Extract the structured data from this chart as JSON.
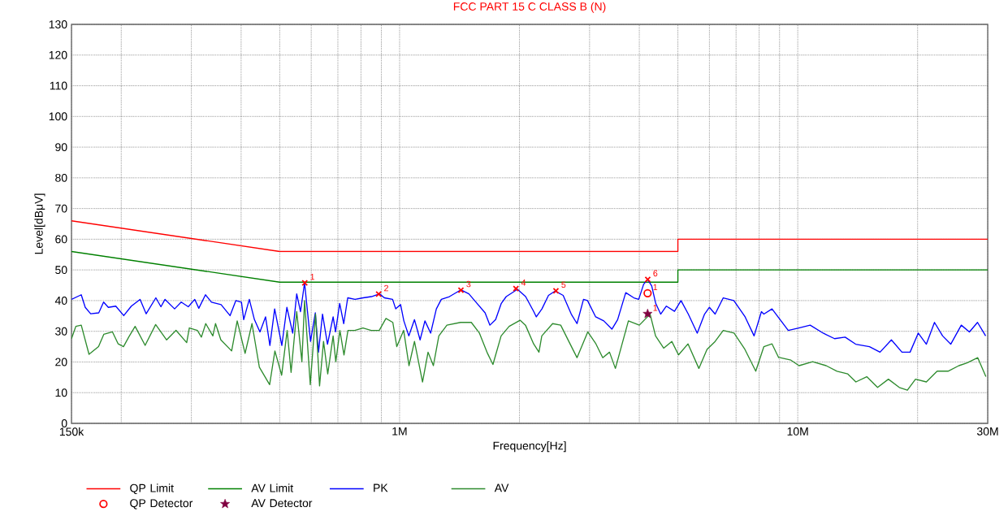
{
  "chart_data": {
    "type": "line",
    "title": "FCC PART 15 C CLASS B (N)",
    "xlabel": "Frequency[Hz]",
    "ylabel": "Level[dBμV]",
    "log": "x",
    "grid": true,
    "legend": "bottom",
    "xlim": [
      150000,
      30000000
    ],
    "ylim": [
      0,
      130
    ],
    "xticks": [
      {
        "value": 150000,
        "label": "150k"
      },
      {
        "value": 200000,
        "label": null
      },
      {
        "value": 300000,
        "label": null
      },
      {
        "value": 400000,
        "label": null
      },
      {
        "value": 500000,
        "label": null
      },
      {
        "value": 600000,
        "label": null
      },
      {
        "value": 700000,
        "label": null
      },
      {
        "value": 800000,
        "label": null
      },
      {
        "value": 900000,
        "label": null
      },
      {
        "value": 1000000,
        "label": "1M"
      },
      {
        "value": 2000000,
        "label": null
      },
      {
        "value": 3000000,
        "label": null
      },
      {
        "value": 4000000,
        "label": null
      },
      {
        "value": 5000000,
        "label": null
      },
      {
        "value": 6000000,
        "label": null
      },
      {
        "value": 7000000,
        "label": null
      },
      {
        "value": 8000000,
        "label": null
      },
      {
        "value": 9000000,
        "label": null
      },
      {
        "value": 10000000,
        "label": "10M"
      },
      {
        "value": 20000000,
        "label": null
      },
      {
        "value": 30000000,
        "label": "30M"
      }
    ],
    "yticks": [
      0,
      10,
      20,
      30,
      40,
      50,
      60,
      70,
      80,
      90,
      100,
      110,
      120,
      130
    ],
    "series": [
      {
        "name": "QP Limit",
        "color": "#ff0000",
        "x": [
          150000,
          500000,
          5000000,
          5000000,
          30000000
        ],
        "values": [
          66,
          56,
          56,
          60,
          60
        ]
      },
      {
        "name": "AV Limit",
        "color": "#008000",
        "x": [
          150000,
          500000,
          5000000,
          5000000,
          30000000
        ],
        "values": [
          56,
          46,
          46,
          50,
          50
        ]
      },
      {
        "name": "PK",
        "color": "#0000ff",
        "x": [
          150000,
          158700,
          162400,
          167600,
          175600,
          180600,
          185600,
          193800,
          202900,
          212000,
          223000,
          231000,
          244300,
          251600,
          257600,
          272300,
          282900,
          294700,
          306000,
          313200,
          325500,
          337000,
          356300,
          375200,
          388000,
          400800,
          406000,
          419400,
          432000,
          446000,
          460700,
          472400,
          485600,
          506200,
          521200,
          539000,
          551700,
          564000,
          577300,
          597600,
          614300,
          625800,
          640500,
          659200,
          681000,
          690600,
          707300,
          724100,
          741000,
          773000,
          810400,
          849800,
          890300,
          915700,
          960400,
          978000,
          1006000,
          1025000,
          1055000,
          1090000,
          1126000,
          1158000,
          1197000,
          1237000,
          1273000,
          1334000,
          1425000,
          1493000,
          1565000,
          1640000,
          1686000,
          1743000,
          1801000,
          1853000,
          1978000,
          2073000,
          2173000,
          2205000,
          2278000,
          2366000,
          2457000,
          2575000,
          2699000,
          2790000,
          2897000,
          2965000,
          3108000,
          3257000,
          3414000,
          3529000,
          3699000,
          3877000,
          3987000,
          4101000,
          4197000,
          4298000,
          4398000,
          4526000,
          4678000,
          4903000,
          5091000,
          5310000,
          5592000,
          5834000,
          6000000,
          6202000,
          6500000,
          6909000,
          7376000,
          7770000,
          8105000,
          8221000,
          8617000,
          9031000,
          9465000,
          10061000,
          10744000,
          11583000,
          12370000,
          13151000,
          13977000,
          15141000,
          16093000,
          17187000,
          18271000,
          19150000,
          20071000,
          21037000,
          22049000,
          23110000,
          24221000,
          25744000,
          26982000,
          28280000,
          29641000
        ],
        "values": [
          40.4,
          41.9,
          37.8,
          35.7,
          36.0,
          39.5,
          37.8,
          38.2,
          35.1,
          38.2,
          40.4,
          35.7,
          40.9,
          38.0,
          40.4,
          37.3,
          39.5,
          38.0,
          40.4,
          37.5,
          41.9,
          39.5,
          38.7,
          35.1,
          40.0,
          39.5,
          33.8,
          40.4,
          33.8,
          29.8,
          34.7,
          25.4,
          37.3,
          25.4,
          37.8,
          29.4,
          42.2,
          36.4,
          45.8,
          26.7,
          36.0,
          23.2,
          35.6,
          25.8,
          34.7,
          29.8,
          39.1,
          32.5,
          40.9,
          40.4,
          40.9,
          41.3,
          42.2,
          40.9,
          40.4,
          37.3,
          38.7,
          33.4,
          28.5,
          33.8,
          27.2,
          33.4,
          29.4,
          37.3,
          40.4,
          41.3,
          43.5,
          42.2,
          39.1,
          36.0,
          32.0,
          33.8,
          39.1,
          41.3,
          43.7,
          41.3,
          36.4,
          34.7,
          37.3,
          41.7,
          43.1,
          41.7,
          35.6,
          32.5,
          40.4,
          40.0,
          34.7,
          33.4,
          30.7,
          33.8,
          42.6,
          40.9,
          40.4,
          45.3,
          46.9,
          44.8,
          39.1,
          35.6,
          38.2,
          36.5,
          40.0,
          35.6,
          29.4,
          35.6,
          37.8,
          35.6,
          40.9,
          40.0,
          34.7,
          28.5,
          36.4,
          35.6,
          37.3,
          33.8,
          30.3,
          31.1,
          32.0,
          29.4,
          27.6,
          28.1,
          25.8,
          25.0,
          23.2,
          27.2,
          23.2,
          23.2,
          29.4,
          25.8,
          32.9,
          28.5,
          25.8,
          32.0,
          29.8,
          32.9,
          28.5
        ]
      },
      {
        "name": "AV",
        "color": "#2e8b2e",
        "x": [
          150000,
          153800,
          158700,
          166000,
          175400,
          180800,
          190100,
          196500,
          202600,
          208800,
          216700,
          229600,
          244000,
          260000,
          274500,
          292000,
          296500,
          310700,
          317900,
          326000,
          339700,
          345000,
          355800,
          378700,
          391100,
          409300,
          426000,
          444500,
          471700,
          486300,
          505700,
          522000,
          534000,
          551700,
          568500,
          577300,
          596700,
          615100,
          629600,
          644200,
          660100,
          681000,
          691600,
          708300,
          725100,
          742000,
          771900,
          809300,
          848600,
          889000,
          924300,
          961700,
          984100,
          1024000,
          1056000,
          1090000,
          1142000,
          1179000,
          1216000,
          1255000,
          1315000,
          1423000,
          1514000,
          1587000,
          1663000,
          1716000,
          1799000,
          1885000,
          2007000,
          2071000,
          2171000,
          2239000,
          2276000,
          2423000,
          2539000,
          2661000,
          2790000,
          2969000,
          3113000,
          3238000,
          3367000,
          3484000,
          3756000,
          4001000,
          4258000,
          4394000,
          4605000,
          4827000,
          5018000,
          5302000,
          5645000,
          5917000,
          6202000,
          6500000,
          6919000,
          7368000,
          7844000,
          8221000,
          8617000,
          8959000,
          9031000,
          9612000,
          10075000,
          10898000,
          11785000,
          12547000,
          13355000,
          13997000,
          14906000,
          15869000,
          16891000,
          17988000,
          18853000,
          19760000,
          21037000,
          22391000,
          23846000,
          25386000,
          26607000,
          28319000,
          29682000
        ],
        "values": [
          27.6,
          31.6,
          32.0,
          22.5,
          25.0,
          29.0,
          29.8,
          25.9,
          25.0,
          28.1,
          31.6,
          25.4,
          32.2,
          27.2,
          30.3,
          26.3,
          31.1,
          30.3,
          28.1,
          32.5,
          28.5,
          32.5,
          27.2,
          23.6,
          33.4,
          22.8,
          32.5,
          18.3,
          12.6,
          23.6,
          15.7,
          30.3,
          16.6,
          36.4,
          20.1,
          40.0,
          12.6,
          35.6,
          12.2,
          26.7,
          16.1,
          28.5,
          20.1,
          30.3,
          22.3,
          30.3,
          30.3,
          31.1,
          30.3,
          30.3,
          34.2,
          32.9,
          25.0,
          30.3,
          18.8,
          26.7,
          13.5,
          23.2,
          18.8,
          28.5,
          32.0,
          32.9,
          32.9,
          29.4,
          22.8,
          19.2,
          28.5,
          31.6,
          33.6,
          32.0,
          25.9,
          23.2,
          28.5,
          32.5,
          32.0,
          26.7,
          21.4,
          29.8,
          25.9,
          21.4,
          23.2,
          17.9,
          33.4,
          32.0,
          35.6,
          28.5,
          24.5,
          26.7,
          22.3,
          25.9,
          17.9,
          24.1,
          26.7,
          30.3,
          29.4,
          24.1,
          17.0,
          25.0,
          25.9,
          21.4,
          21.4,
          20.6,
          18.8,
          20.1,
          18.8,
          17.0,
          16.1,
          13.5,
          15.2,
          11.7,
          14.4,
          11.7,
          10.8,
          14.4,
          13.5,
          17.0,
          17.0,
          18.8,
          19.7,
          21.4,
          15.2
        ]
      },
      {
        "name": "QP Detector",
        "type": "scatter",
        "color": "#ff0000",
        "marker": "circle",
        "x": [
          4197000
        ],
        "values": [
          42.4
        ]
      },
      {
        "name": "AV Detector",
        "type": "scatter",
        "color": "#800040",
        "marker": "star",
        "x": [
          4197000
        ],
        "values": [
          35.7
        ]
      },
      {
        "type": "scatter",
        "color": "#ff0000",
        "marker": "cross",
        "x": [
          578000,
          886000,
          1426000,
          1960000,
          2470000,
          4200000
        ],
        "values": [
          45.8,
          42.1,
          43.4,
          43.9,
          43.2,
          46.9
        ]
      }
    ],
    "annotations": [
      {
        "text": "1",
        "x": 578000,
        "y": 45.8
      },
      {
        "text": "2",
        "x": 886000,
        "y": 42.1
      },
      {
        "text": "3",
        "x": 1426000,
        "y": 43.4
      },
      {
        "text": "4",
        "x": 1960000,
        "y": 43.9
      },
      {
        "text": "5",
        "x": 2470000,
        "y": 43.2
      },
      {
        "text": "6",
        "x": 4200000,
        "y": 46.9
      },
      {
        "text": "1",
        "x": 4197000,
        "y": 42.4
      },
      {
        "text": "1",
        "x": 4197000,
        "y": 35.7
      }
    ]
  }
}
